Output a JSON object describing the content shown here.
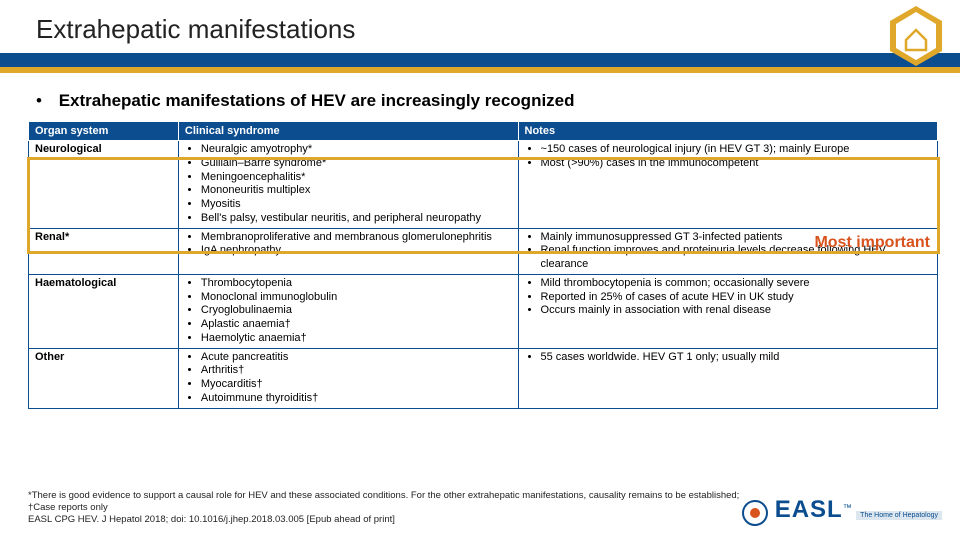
{
  "title": "Extrahepatic manifestations",
  "intro": "Extrahepatic manifestations of HEV are increasingly recognized",
  "headers": {
    "c1": "Organ system",
    "c2": "Clinical syndrome",
    "c3": "Notes"
  },
  "rows": [
    {
      "organ": "Neurological",
      "syndrome": [
        "Neuralgic amyotrophy*",
        "Guillain–Barré syndrome*",
        "Meningoencephalitis*",
        "Mononeuritis multiplex",
        "Myositis",
        "Bell's palsy, vestibular neuritis, and peripheral neuropathy"
      ],
      "notes": [
        "~150 cases of neurological injury (in HEV GT 3); mainly Europe",
        "Most (>90%) cases in the immunocompetent"
      ]
    },
    {
      "organ": "Renal*",
      "syndrome": [
        "Membranoproliferative and membranous glomerulonephritis",
        "IgA nephropathy"
      ],
      "notes": [
        "Mainly immunosuppressed GT 3-infected patients",
        "Renal function improves and proteinuria levels decrease following HEV clearance"
      ]
    },
    {
      "organ": "Haematological",
      "syndrome": [
        "Thrombocytopenia",
        "Monoclonal immunoglobulin",
        "Cryoglobulinaemia",
        "Aplastic anaemia†",
        "Haemolytic anaemia†"
      ],
      "notes": [
        "Mild thrombocytopenia is common; occasionally severe",
        "Reported in 25% of cases of acute HEV in UK study",
        "Occurs mainly in association with renal disease"
      ]
    },
    {
      "organ": "Other",
      "syndrome": [
        "Acute pancreatitis",
        "Arthritis†",
        "Myocarditis†",
        "Autoimmune thyroiditis†"
      ],
      "notes": [
        "55 cases worldwide. HEV GT 1 only; usually mild"
      ]
    }
  ],
  "annotation": "Most important",
  "footnote": {
    "l1": "*There is good evidence to support a causal role for HEV and these associated conditions. For the other extrahepatic manifestations, causality remains to be established;",
    "l2": "†Case reports only",
    "l3": "EASL CPG HEV. J Hepatol 2018; doi: 10.1016/j.jhep.2018.03.005 [Epub ahead of print]"
  },
  "logo": {
    "mark": "EASL",
    "tag": "The Home of Hepatology"
  },
  "colors": {
    "blue": "#0b4d8f",
    "gold": "#e0a82a",
    "orange": "#d9531e"
  }
}
